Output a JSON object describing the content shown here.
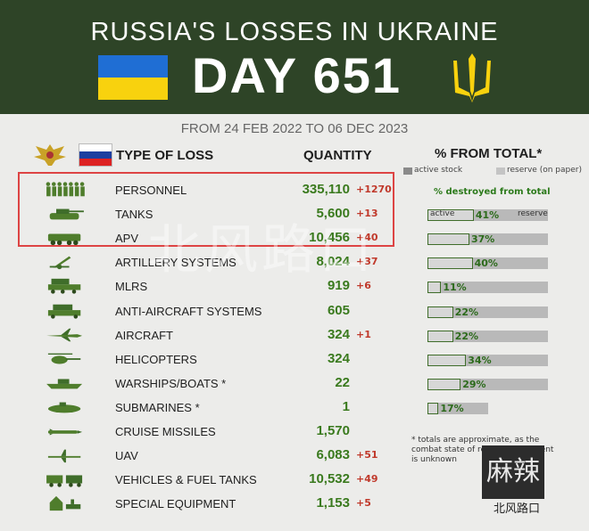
{
  "header": {
    "title": "RUSSIA'S LOSSES IN UKRAINE",
    "day": "DAY 651",
    "date_range": "FROM 24 FEB 2022 TO 06 DEC 2023"
  },
  "columns": {
    "type": "TYPE OF LOSS",
    "quantity": "QUANTITY",
    "percent": "% FROM TOTAL*",
    "legend_active": "active stock",
    "legend_reserve": "reserve (on paper)",
    "pct_destroyed": "% destroyed from total",
    "bar_active_label": "active",
    "bar_reserve_label": "reserve"
  },
  "colors": {
    "header_bg": "#2e4427",
    "quantity": "#3a7a1e",
    "delta": "#c0392b",
    "ua_blue": "#1f6ed4",
    "ua_yellow": "#f8d20e"
  },
  "rows": [
    {
      "icon": "soldiers-icon",
      "label": "PERSONNEL",
      "quantity": "335,110",
      "delta": "+1270"
    },
    {
      "icon": "tank-icon",
      "label": "TANKS",
      "quantity": "5,600",
      "delta": "+13",
      "pct": "41%",
      "active": 0.41,
      "reserve": 1.0
    },
    {
      "icon": "apv-icon",
      "label": "APV",
      "quantity": "10,456",
      "delta": "+40",
      "pct": "37%",
      "active": 0.37,
      "reserve": 1.0
    },
    {
      "icon": "artillery-icon",
      "label": "ARTILLERY SYSTEMS",
      "quantity": "8,024",
      "delta": "+37",
      "pct": "40%",
      "active": 0.4,
      "reserve": 1.0
    },
    {
      "icon": "mlrs-icon",
      "label": "MLRS",
      "quantity": "919",
      "delta": "+6",
      "pct": "11%",
      "active": 0.11,
      "reserve": 1.0
    },
    {
      "icon": "anti-aircraft-icon",
      "label": "ANTI-AIRCRAFT SYSTEMS",
      "quantity": "605",
      "delta": "",
      "pct": "22%",
      "active": 0.22,
      "reserve": 1.0
    },
    {
      "icon": "aircraft-icon",
      "label": "AIRCRAFT",
      "quantity": "324",
      "delta": "+1",
      "pct": "22%",
      "active": 0.22,
      "reserve": 1.0
    },
    {
      "icon": "helicopter-icon",
      "label": "HELICOPTERS",
      "quantity": "324",
      "delta": "",
      "pct": "34%",
      "active": 0.34,
      "reserve": 1.0
    },
    {
      "icon": "warship-icon",
      "label": "WARSHIPS/BOATS *",
      "quantity": "22",
      "delta": "",
      "pct": "29%",
      "active": 0.29,
      "reserve": 1.0
    },
    {
      "icon": "submarine-icon",
      "label": "SUBMARINES *",
      "quantity": "1",
      "delta": "",
      "pct": "17%",
      "active": 0.17,
      "reserve": 0.5
    },
    {
      "icon": "cruise-missile-icon",
      "label": "CRUISE MISSILES",
      "quantity": "1,570",
      "delta": ""
    },
    {
      "icon": "uav-icon",
      "label": "UAV",
      "quantity": "6,083",
      "delta": "+51"
    },
    {
      "icon": "vehicles-icon",
      "label": "VEHICLES & FUEL TANKS",
      "quantity": "10,532",
      "delta": "+49"
    },
    {
      "icon": "special-equipment-icon",
      "label": "SPECIAL EQUIPMENT",
      "quantity": "1,153",
      "delta": "+5"
    }
  ],
  "footnote": "* totals are approximate, as the combat state of reserve equipment is unknown",
  "watermarks": {
    "center": "北风路口",
    "corner": "北风路口",
    "stamp": "麻辣"
  }
}
